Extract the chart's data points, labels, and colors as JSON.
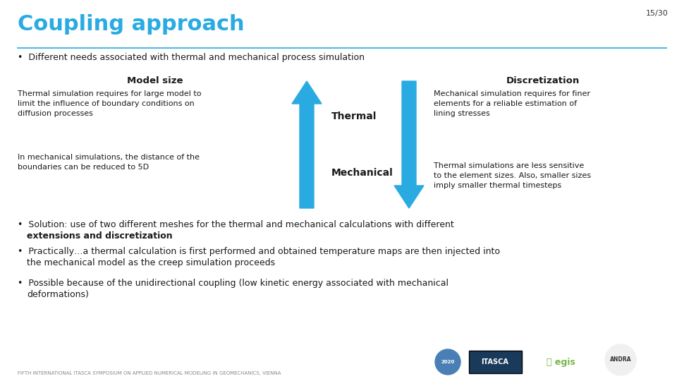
{
  "slide_number": "15/30",
  "title": "Coupling approach",
  "bullet1": "Different needs associated with thermal and mechanical process simulation",
  "model_size_label": "Model size",
  "discretization_label": "Discretization",
  "thermal_label": "Thermal",
  "mechanical_label": "Mechanical",
  "left_text1": "Thermal simulation requires for large model to\nlimit the influence of boundary conditions on\ndiffusion processes",
  "left_text2": "In mechanical simulations, the distance of the\nboundaries can be reduced to 5D",
  "right_text1": "Mechanical simulation requires for finer\nelements for a reliable estimation of\nlining stresses",
  "right_text2": "Thermal simulations are less sensitive\nto the element sizes. Also, smaller sizes\nimply smaller thermal timesteps",
  "bullet2_line1": "Solution: use of two different meshes for the thermal and mechanical calculations with different",
  "bullet2_line2": "extensions and discretization",
  "bullet3_line1": "Practically…a thermal calculation is first performed and obtained temperature maps are then injected into",
  "bullet3_line2": "the mechanical model as the creep simulation proceeds",
  "bullet4_line1": "Possible because of the unidirectional coupling (low kinetic energy associated with mechanical",
  "bullet4_line2": "deformations)",
  "footer": "FIFTH INTERNATIONAL ITASCA SYMPOSIUM ON APPLIED NUMERICAL MODELING IN GEOMECHANICS, VIENNA",
  "bg_color": "#ffffff",
  "title_color": "#29abe2",
  "slide_num_color": "#333333",
  "arrow_color": "#29abe2",
  "text_color": "#1a1a1a",
  "line_color": "#29abe2"
}
